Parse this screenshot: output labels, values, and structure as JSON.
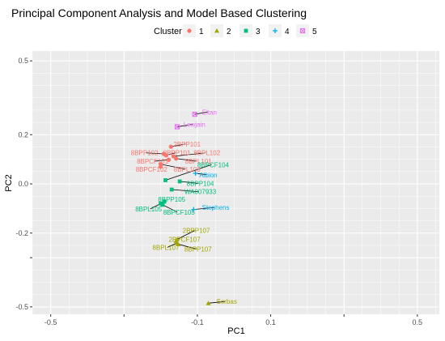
{
  "chart_data": {
    "type": "scatter",
    "title": "Principal Component Analysis and Model Based Clustering",
    "xlabel": "PC1",
    "ylabel": "PC2",
    "xlim": [
      -0.55,
      0.56
    ],
    "ylim": [
      -0.53,
      0.54
    ],
    "x_ticks": [
      -0.5,
      -0.3,
      -0.1,
      0.1,
      0.3,
      0.5
    ],
    "x_tick_labels": [
      "-0.5",
      "-0.1",
      "0.1",
      "0.5"
    ],
    "x_tick_label_values": [
      -0.5,
      -0.1,
      0.1,
      0.5
    ],
    "y_ticks": [
      -0.5,
      -0.3,
      -0.2,
      0.0,
      0.2,
      0.5
    ],
    "y_tick_labels": [
      "0.5",
      "0.2",
      "0.0",
      "-0.2",
      "-0.5"
    ],
    "y_tick_label_values": [
      0.5,
      0.2,
      0.0,
      -0.2,
      -0.5
    ],
    "grid": true,
    "legend": {
      "title": "Cluster",
      "position": "top",
      "entries": [
        {
          "label": "1",
          "color": "#F8766D",
          "shape": "circle"
        },
        {
          "label": "2",
          "color": "#A3A500",
          "shape": "triangle"
        },
        {
          "label": "3",
          "color": "#00BF7D",
          "shape": "square"
        },
        {
          "label": "4",
          "color": "#00B0F6",
          "shape": "plus"
        },
        {
          "label": "5",
          "color": "#E76BF3",
          "shape": "boxcross"
        }
      ]
    },
    "points": [
      {
        "label": "2BPP101",
        "cluster": 1,
        "x": -0.172,
        "y": 0.151,
        "lx": -0.128,
        "ly": 0.162
      },
      {
        "label": "8BPP102",
        "cluster": 1,
        "x": -0.192,
        "y": 0.122,
        "lx": -0.244,
        "ly": 0.126
      },
      {
        "label": "8BPP101",
        "cluster": 1,
        "x": -0.185,
        "y": 0.116,
        "lx": -0.156,
        "ly": 0.126
      },
      {
        "label": "8BPL102",
        "cluster": 1,
        "x": -0.165,
        "y": 0.112,
        "lx": -0.074,
        "ly": 0.126
      },
      {
        "label": "8BPCF101",
        "cluster": 1,
        "x": -0.178,
        "y": 0.098,
        "lx": -0.222,
        "ly": 0.092
      },
      {
        "label": "8BPL101",
        "cluster": 1,
        "x": -0.158,
        "y": 0.103,
        "lx": -0.097,
        "ly": 0.092
      },
      {
        "label": "8BPCF102",
        "cluster": 1,
        "x": -0.2,
        "y": 0.07,
        "lx": -0.225,
        "ly": 0.06
      },
      {
        "label": "8BPL103",
        "cluster": 1,
        "x": -0.2,
        "y": 0.08,
        "lx": -0.128,
        "ly": 0.06
      },
      {
        "label": "2BPP107",
        "cluster": 2,
        "x": -0.155,
        "y": -0.225,
        "lx": -0.103,
        "ly": -0.19
      },
      {
        "label": "2BPCF107",
        "cluster": 2,
        "x": -0.158,
        "y": -0.232,
        "lx": -0.135,
        "ly": -0.225
      },
      {
        "label": "8BPL107",
        "cluster": 2,
        "x": -0.155,
        "y": -0.24,
        "lx": -0.186,
        "ly": -0.258
      },
      {
        "label": "8BPP107",
        "cluster": 2,
        "x": -0.152,
        "y": -0.245,
        "lx": -0.098,
        "ly": -0.265
      },
      {
        "label": "Sorbas",
        "cluster": 2,
        "x": -0.07,
        "y": -0.485,
        "lx": -0.02,
        "ly": -0.478
      },
      {
        "label": "8BPCF104",
        "cluster": 3,
        "x": -0.187,
        "y": 0.015,
        "lx": -0.057,
        "ly": 0.078
      },
      {
        "label": "8BPP104",
        "cluster": 3,
        "x": -0.148,
        "y": 0.01,
        "lx": -0.092,
        "ly": 0.002
      },
      {
        "label": "WA007933",
        "cluster": 3,
        "x": -0.17,
        "y": -0.023,
        "lx": -0.092,
        "ly": -0.032
      },
      {
        "label": "8BPP105",
        "cluster": 3,
        "x": -0.19,
        "y": -0.072,
        "lx": -0.17,
        "ly": -0.062
      },
      {
        "label": "8BPL105",
        "cluster": 3,
        "x": -0.2,
        "y": -0.08,
        "lx": -0.233,
        "ly": -0.102
      },
      {
        "label": "8BPCF105",
        "cluster": 3,
        "x": -0.195,
        "y": -0.085,
        "lx": -0.15,
        "ly": -0.115
      },
      {
        "label": "Albion",
        "cluster": 4,
        "x": -0.105,
        "y": 0.043,
        "lx": -0.07,
        "ly": 0.037
      },
      {
        "label": "Stephens",
        "cluster": 4,
        "x": -0.11,
        "y": -0.104,
        "lx": -0.05,
        "ly": -0.096
      },
      {
        "label": "Eltan",
        "cluster": 5,
        "x": -0.107,
        "y": 0.283,
        "lx": -0.067,
        "ly": 0.292
      },
      {
        "label": "Lewjain",
        "cluster": 5,
        "x": -0.155,
        "y": 0.232,
        "lx": -0.108,
        "ly": 0.242
      }
    ]
  }
}
